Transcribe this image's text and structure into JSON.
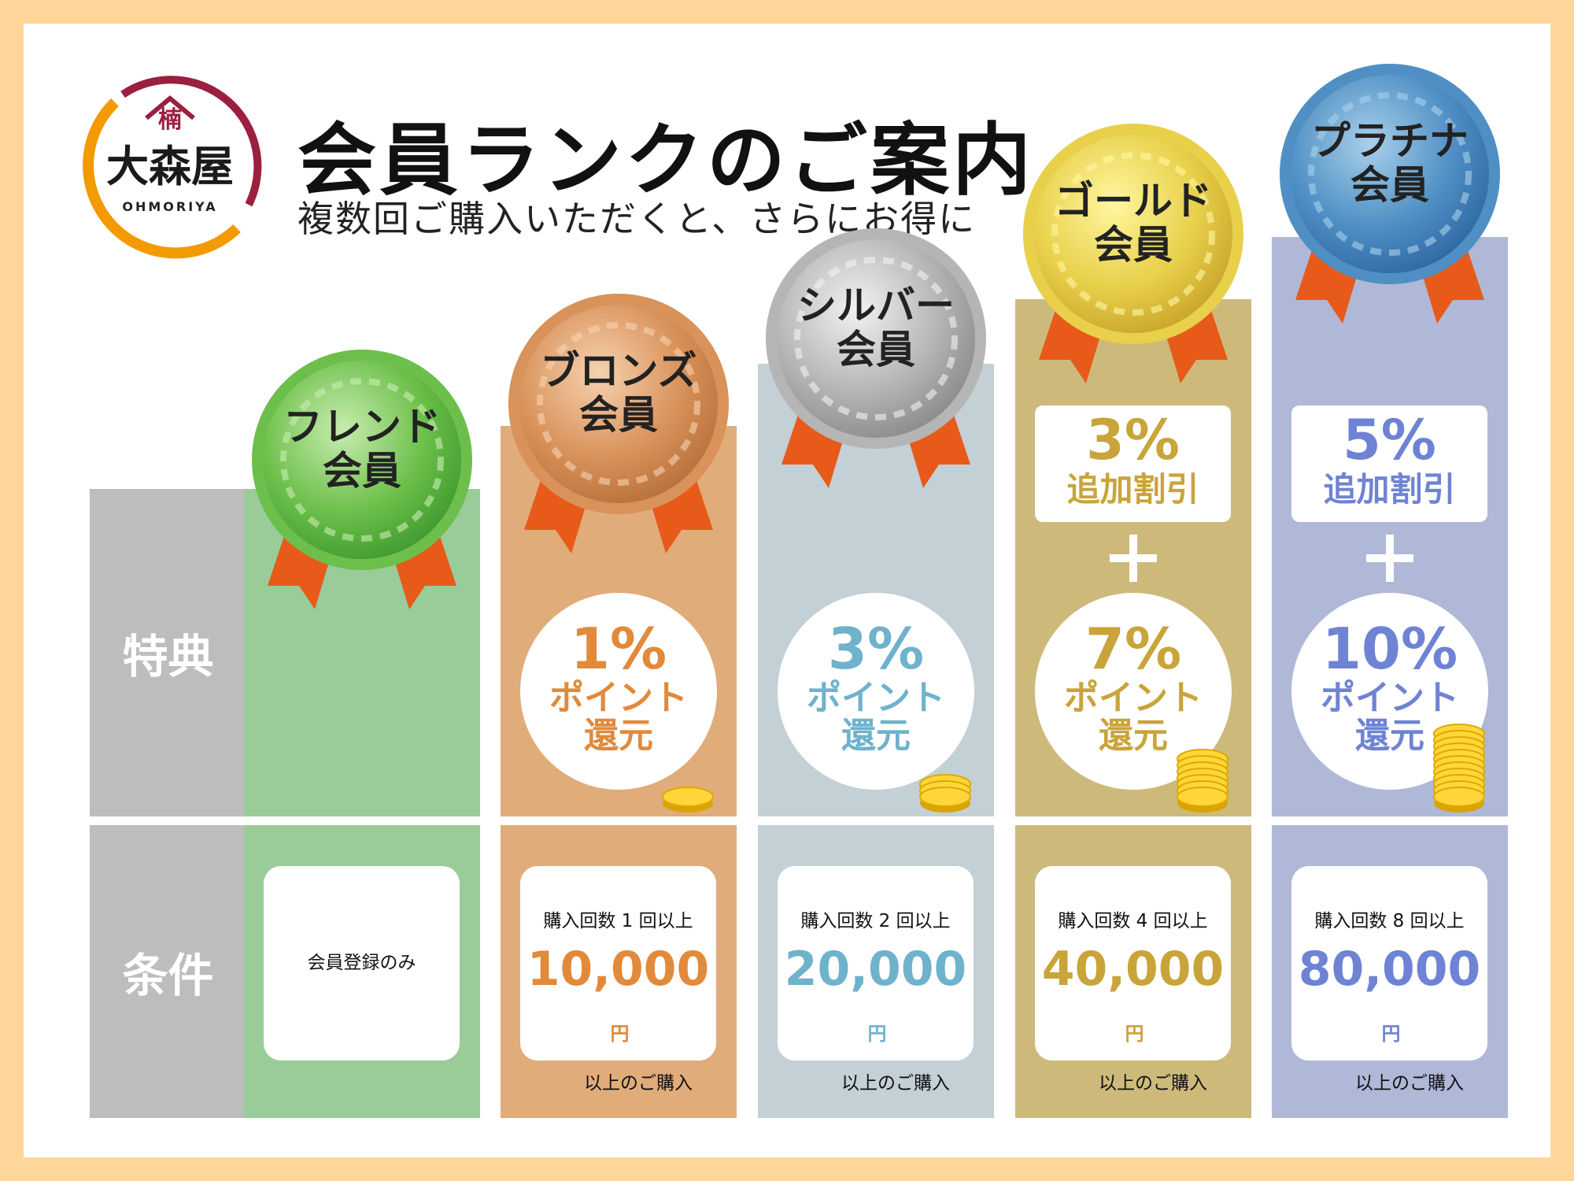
{
  "title": "会員ランクのご案内",
  "subtitle": "複数回ご購入いただくと、さらにお得に",
  "logo": {
    "name": "大森屋",
    "mark": "楠",
    "romaji": "OHMORIYA"
  },
  "labels": {
    "benefit": "特典",
    "condition": "条件"
  },
  "colors": {
    "border": "#FFD699",
    "label_bg": "#BDBDBD"
  },
  "ranks": [
    {
      "name_line1": "フレンド",
      "name_line2": "会員",
      "bg": "#99CC99",
      "accent": "#4CAF50",
      "medal": [
        "#c8ecb0",
        "#6cbf4a",
        "#3f9a2e"
      ],
      "condition_only": "会員登録のみ",
      "coins": 0
    },
    {
      "name_line1": "ブロンズ",
      "name_line2": "会員",
      "bg": "#E0AC7A",
      "accent": "#E08A3A",
      "medal": [
        "#f6d2b0",
        "#d9925a",
        "#b8703a"
      ],
      "point_pct": "1%",
      "point_l1": "ポイント",
      "point_l2": "還元",
      "cond_a": "購入回数 1 回以上",
      "amount": "10,000",
      "yen": "円",
      "cond_b": "以上のご購入",
      "coins": 1
    },
    {
      "name_line1": "シルバー",
      "name_line2": "会員",
      "bg": "#C3D0D6",
      "accent": "#6FB2CC",
      "medal": [
        "#f2f2f2",
        "#b5b5b5",
        "#8a8a8a"
      ],
      "point_pct": "3%",
      "point_l1": "ポイント",
      "point_l2": "還元",
      "cond_a": "購入回数 2 回以上",
      "amount": "20,000",
      "yen": "円",
      "cond_b": "以上のご購入",
      "coins": 3
    },
    {
      "name_line1": "ゴールド",
      "name_line2": "会員",
      "bg": "#CDBA7B",
      "accent": "#C9A43A",
      "medal": [
        "#fff6a0",
        "#e8d04a",
        "#c9a42a"
      ],
      "bonus_pct": "3%",
      "bonus_text": "追加割引",
      "point_pct": "7%",
      "point_l1": "ポイント",
      "point_l2": "還元",
      "cond_a": "購入回数 4 回以上",
      "amount": "40,000",
      "yen": "円",
      "cond_b": "以上のご購入",
      "coins": 7
    },
    {
      "name_line1": "プラチナ",
      "name_line2": "会員",
      "bg": "#B0B8D8",
      "accent": "#6E83D4",
      "medal": [
        "#a8d0ea",
        "#4f8fc4",
        "#2f68a4"
      ],
      "bonus_pct": "5%",
      "bonus_text": "追加割引",
      "point_pct": "10%",
      "point_l1": "ポイント",
      "point_l2": "還元",
      "cond_a": "購入回数 8 回以上",
      "amount": "80,000",
      "yen": "円",
      "cond_b": "以上のご購入",
      "coins": 11
    }
  ]
}
